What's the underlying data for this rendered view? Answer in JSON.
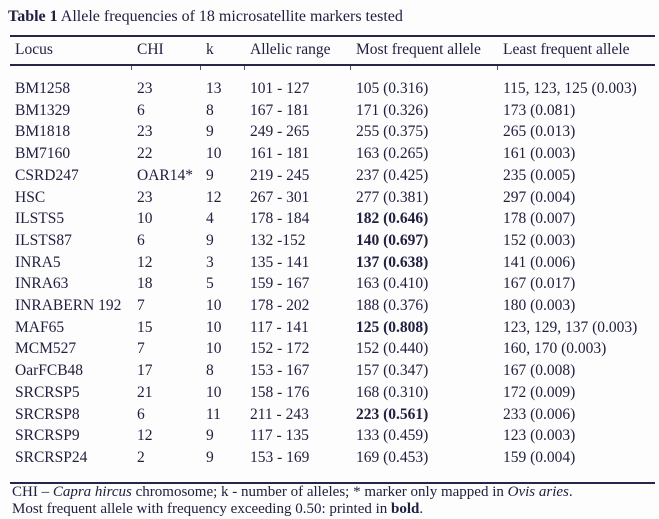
{
  "caption": {
    "segments": [
      {
        "text": "Table 1",
        "bold": true
      },
      {
        "text": " Allele frequencies of 18 microsatellite markers tested"
      }
    ]
  },
  "table": {
    "columns": [
      "Locus",
      "CHI",
      "k",
      "Allelic range",
      "Most frequent allele",
      "Least frequent allele"
    ],
    "rows": [
      {
        "locus": "BM1258",
        "chi": "23",
        "k": "13",
        "allelic_range": "101 - 127",
        "most_frequent": "105 (0.316)",
        "most_frequent_bold": false,
        "least_frequent": "115, 123, 125 (0.003)"
      },
      {
        "locus": "BM1329",
        "chi": "6",
        "k": "8",
        "allelic_range": "167 - 181",
        "most_frequent": "171 (0.326)",
        "most_frequent_bold": false,
        "least_frequent": "173 (0.081)"
      },
      {
        "locus": "BM1818",
        "chi": "23",
        "k": "9",
        "allelic_range": "249 - 265",
        "most_frequent": "255 (0.375)",
        "most_frequent_bold": false,
        "least_frequent": "265 (0.013)"
      },
      {
        "locus": "BM7160",
        "chi": "22",
        "k": "10",
        "allelic_range": "161 - 181",
        "most_frequent": "163 (0.265)",
        "most_frequent_bold": false,
        "least_frequent": "161 (0.003)"
      },
      {
        "locus": "CSRD247",
        "chi": "OAR14*",
        "k": "9",
        "allelic_range": "219 - 245",
        "most_frequent": "237 (0.425)",
        "most_frequent_bold": false,
        "least_frequent": "235 (0.005)"
      },
      {
        "locus": "HSC",
        "chi": "23",
        "k": "12",
        "allelic_range": "267 - 301",
        "most_frequent": "277 (0.381)",
        "most_frequent_bold": false,
        "least_frequent": "297 (0.004)"
      },
      {
        "locus": "ILSTS5",
        "chi": "10",
        "k": "4",
        "allelic_range": "178 - 184",
        "most_frequent": "182 (0.646)",
        "most_frequent_bold": true,
        "least_frequent": "178 (0.007)"
      },
      {
        "locus": "ILSTS87",
        "chi": "6",
        "k": "9",
        "allelic_range": "132 -152",
        "most_frequent": "140 (0.697)",
        "most_frequent_bold": true,
        "least_frequent": "152 (0.003)"
      },
      {
        "locus": "INRA5",
        "chi": "12",
        "k": "3",
        "allelic_range": "135 - 141",
        "most_frequent": "137 (0.638)",
        "most_frequent_bold": true,
        "least_frequent": "141 (0.006)"
      },
      {
        "locus": "INRA63",
        "chi": "18",
        "k": "5",
        "allelic_range": "159 - 167",
        "most_frequent": "163 (0.410)",
        "most_frequent_bold": false,
        "least_frequent": "167 (0.017)"
      },
      {
        "locus": "INRABERN 192",
        "chi": "7",
        "k": "10",
        "allelic_range": "178 - 202",
        "most_frequent": "188 (0.376)",
        "most_frequent_bold": false,
        "least_frequent": "180 (0.003)"
      },
      {
        "locus": "MAF65",
        "chi": "15",
        "k": "10",
        "allelic_range": "117 - 141",
        "most_frequent": "125 (0.808)",
        "most_frequent_bold": true,
        "least_frequent": "123, 129, 137 (0.003)"
      },
      {
        "locus": "MCM527",
        "chi": "7",
        "k": "10",
        "allelic_range": "152 - 172",
        "most_frequent": "152 (0.440)",
        "most_frequent_bold": false,
        "least_frequent": "160, 170 (0.003)"
      },
      {
        "locus": "OarFCB48",
        "chi": "17",
        "k": "8",
        "allelic_range": "153 - 167",
        "most_frequent": "157 (0.347)",
        "most_frequent_bold": false,
        "least_frequent": "167 (0.008)"
      },
      {
        "locus": "SRCRSP5",
        "chi": "21",
        "k": "10",
        "allelic_range": "158 - 176",
        "most_frequent": "168 (0.310)",
        "most_frequent_bold": false,
        "least_frequent": "172 (0.009)"
      },
      {
        "locus": "SRCRSP8",
        "chi": "6",
        "k": "11",
        "allelic_range": "211 - 243",
        "most_frequent": "223 (0.561)",
        "most_frequent_bold": true,
        "least_frequent": "233 (0.006)"
      },
      {
        "locus": "SRCRSP9",
        "chi": "12",
        "k": "9",
        "allelic_range": "117 - 135",
        "most_frequent": "133 (0.459)",
        "most_frequent_bold": false,
        "least_frequent": "123 (0.003)"
      },
      {
        "locus": "SRCRSP24",
        "chi": "2",
        "k": "9",
        "allelic_range": "153 - 169",
        "most_frequent": "169 (0.453)",
        "most_frequent_bold": false,
        "least_frequent": "159 (0.004)"
      }
    ]
  },
  "footnotes": [
    {
      "segments": [
        {
          "text": "CHI – "
        },
        {
          "text": "Capra hircus",
          "italic": true
        },
        {
          "text": " chromosome; k - number of alleles; * marker only mapped in "
        },
        {
          "text": "Ovis aries",
          "italic": true
        },
        {
          "text": "."
        }
      ]
    },
    {
      "segments": [
        {
          "text": "Most frequent allele with frequency exceeding 0.50: printed in "
        },
        {
          "text": "bold",
          "bold": true
        },
        {
          "text": "."
        }
      ]
    }
  ],
  "colors": {
    "background": "#fdfdfd",
    "text": "#202040",
    "rule": "#26264a"
  }
}
